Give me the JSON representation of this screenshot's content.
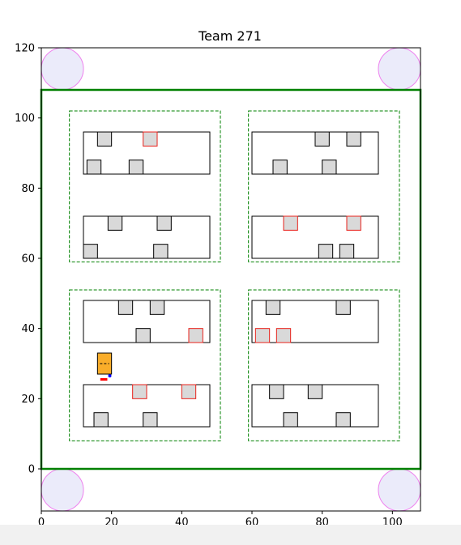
{
  "chart_data": {
    "type": "diagram",
    "title": "Team 271",
    "xlim": [
      0,
      108
    ],
    "ylim": [
      -12,
      120
    ],
    "xticks": [
      0,
      20,
      40,
      60,
      80,
      100
    ],
    "yticks": [
      0,
      20,
      40,
      60,
      80,
      100,
      120
    ],
    "colors": {
      "field_border": "#008000",
      "zone_border": "#008000",
      "aisle_border": "#000000",
      "box_fill": "#d9d9d9",
      "box_border_normal": "#000000",
      "box_border_highlight": "#e8221b",
      "corner_fill": "#ebebfa",
      "corner_border": "#ee82ee",
      "robot_fill": "#f9ad2a",
      "robot_marker": "#ff0000",
      "robot_dot": "#0000ff"
    },
    "field": {
      "x0": 0,
      "y0": 0,
      "x1": 108,
      "y1": 108
    },
    "corners": [
      {
        "cx": 6,
        "cy": 114,
        "r": 6
      },
      {
        "cx": 102,
        "cy": 114,
        "r": 6
      },
      {
        "cx": 6,
        "cy": -6,
        "r": 6
      },
      {
        "cx": 102,
        "cy": -6,
        "r": 6
      }
    ],
    "zones": [
      {
        "x0": 8,
        "y0": 59,
        "x1": 51,
        "y1": 102
      },
      {
        "x0": 59,
        "y0": 59,
        "x1": 102,
        "y1": 102
      },
      {
        "x0": 8,
        "y0": 8,
        "x1": 51,
        "y1": 51
      },
      {
        "x0": 59,
        "y0": 8,
        "x1": 102,
        "y1": 51
      }
    ],
    "aisles": [
      {
        "x0": 12,
        "y0": 84,
        "x1": 48,
        "y1": 96
      },
      {
        "x0": 60,
        "y0": 84,
        "x1": 96,
        "y1": 96
      },
      {
        "x0": 12,
        "y0": 60,
        "x1": 48,
        "y1": 72
      },
      {
        "x0": 60,
        "y0": 60,
        "x1": 96,
        "y1": 72
      },
      {
        "x0": 12,
        "y0": 36,
        "x1": 48,
        "y1": 48
      },
      {
        "x0": 60,
        "y0": 36,
        "x1": 96,
        "y1": 48
      },
      {
        "x0": 12,
        "y0": 12,
        "x1": 48,
        "y1": 24
      },
      {
        "x0": 60,
        "y0": 12,
        "x1": 96,
        "y1": 24
      }
    ],
    "boxes": [
      {
        "cx": 18,
        "cy": 94,
        "h": false
      },
      {
        "cx": 31,
        "cy": 94,
        "h": true
      },
      {
        "cx": 15,
        "cy": 86,
        "h": false
      },
      {
        "cx": 27,
        "cy": 86,
        "h": false
      },
      {
        "cx": 80,
        "cy": 94,
        "h": false
      },
      {
        "cx": 89,
        "cy": 94,
        "h": false
      },
      {
        "cx": 68,
        "cy": 86,
        "h": false
      },
      {
        "cx": 82,
        "cy": 86,
        "h": false
      },
      {
        "cx": 21,
        "cy": 70,
        "h": false
      },
      {
        "cx": 35,
        "cy": 70,
        "h": false
      },
      {
        "cx": 14,
        "cy": 62,
        "h": false
      },
      {
        "cx": 34,
        "cy": 62,
        "h": false
      },
      {
        "cx": 71,
        "cy": 70,
        "h": true
      },
      {
        "cx": 89,
        "cy": 70,
        "h": true
      },
      {
        "cx": 81,
        "cy": 62,
        "h": false
      },
      {
        "cx": 87,
        "cy": 62,
        "h": false
      },
      {
        "cx": 24,
        "cy": 46,
        "h": false
      },
      {
        "cx": 33,
        "cy": 46,
        "h": false
      },
      {
        "cx": 29,
        "cy": 38,
        "h": false
      },
      {
        "cx": 44,
        "cy": 38,
        "h": true
      },
      {
        "cx": 66,
        "cy": 46,
        "h": false
      },
      {
        "cx": 86,
        "cy": 46,
        "h": false
      },
      {
        "cx": 63,
        "cy": 38,
        "h": true
      },
      {
        "cx": 69,
        "cy": 38,
        "h": true
      },
      {
        "cx": 28,
        "cy": 22,
        "h": true
      },
      {
        "cx": 42,
        "cy": 22,
        "h": true
      },
      {
        "cx": 17,
        "cy": 14,
        "h": false
      },
      {
        "cx": 31,
        "cy": 14,
        "h": false
      },
      {
        "cx": 67,
        "cy": 22,
        "h": false
      },
      {
        "cx": 78,
        "cy": 22,
        "h": false
      },
      {
        "cx": 71,
        "cy": 14,
        "h": false
      },
      {
        "cx": 86,
        "cy": 14,
        "h": false
      }
    ],
    "box_size": 4,
    "robot": {
      "x0": 16,
      "y0": 27,
      "x1": 20,
      "y1": 33,
      "marker_x0": 16.8,
      "marker_x1": 18.8,
      "marker_y": 25.5,
      "dot_x": 19.5,
      "dot_y": 26.5
    }
  }
}
